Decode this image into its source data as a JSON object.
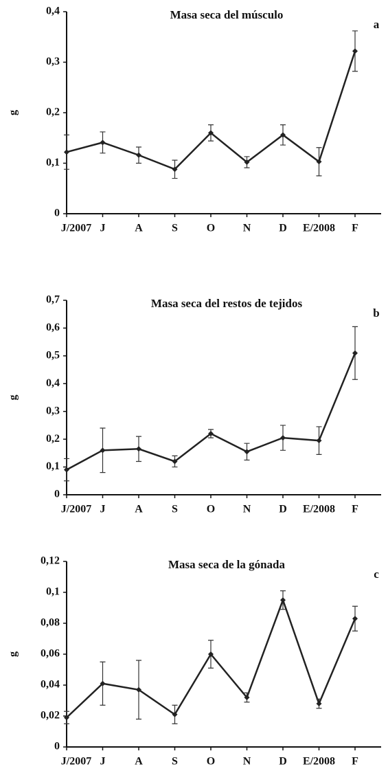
{
  "chart_data": [
    {
      "type": "line",
      "title": "Masa seca del músculo",
      "annotation": "a",
      "ylabel": "g",
      "color": "#222",
      "categories": [
        "J/2007",
        "J",
        "A",
        "S",
        "O",
        "N",
        "D",
        "E/2008",
        "F"
      ],
      "values": [
        0.122,
        0.141,
        0.116,
        0.088,
        0.16,
        0.102,
        0.156,
        0.103,
        0.322
      ],
      "errors": [
        0.034,
        0.021,
        0.016,
        0.018,
        0.016,
        0.011,
        0.02,
        0.028,
        0.04
      ],
      "ylim": [
        0,
        0.4
      ],
      "yticks": [
        0,
        {
          "value": 0.1,
          "label": "0,1"
        },
        {
          "value": 0.2,
          "label": "0,2"
        },
        {
          "value": 0.3,
          "label": "0,3"
        },
        {
          "value": 0.4,
          "label": "0,4"
        }
      ]
    },
    {
      "type": "line",
      "title": "Masa seca del restos de tejidos",
      "annotation": "b",
      "ylabel": "g",
      "color": "#222",
      "categories": [
        "J/2007",
        "J",
        "A",
        "S",
        "O",
        "N",
        "D",
        "E/2008",
        "F"
      ],
      "values": [
        0.09,
        0.16,
        0.165,
        0.12,
        0.22,
        0.155,
        0.205,
        0.195,
        0.51
      ],
      "errors": [
        0.04,
        0.08,
        0.045,
        0.02,
        0.015,
        0.03,
        0.045,
        0.05,
        0.095
      ],
      "ylim": [
        0,
        0.7
      ],
      "yticks": [
        0,
        {
          "value": 0.1,
          "label": "0,1"
        },
        {
          "value": 0.2,
          "label": "0,2"
        },
        {
          "value": 0.3,
          "label": "0,3"
        },
        {
          "value": 0.4,
          "label": "0,4"
        },
        {
          "value": 0.5,
          "label": "0,5"
        },
        {
          "value": 0.6,
          "label": "0,6"
        },
        {
          "value": 0.7,
          "label": "0,7"
        }
      ]
    },
    {
      "type": "line",
      "title": "Masa seca de la gónada",
      "annotation": "c",
      "ylabel": "g",
      "color": "#222",
      "categories": [
        "J/2007",
        "J",
        "A",
        "S",
        "O",
        "N",
        "D",
        "E/2008",
        "F"
      ],
      "values": [
        0.019,
        0.041,
        0.037,
        0.021,
        0.06,
        0.032,
        0.095,
        0.028,
        0.083
      ],
      "errors": [
        0.004,
        0.014,
        0.019,
        0.006,
        0.009,
        0.003,
        0.006,
        0.003,
        0.008
      ],
      "ylim": [
        0,
        0.12
      ],
      "yticks": [
        0,
        {
          "value": 0.02,
          "label": "0,02"
        },
        {
          "value": 0.04,
          "label": "0,04"
        },
        {
          "value": 0.06,
          "label": "0,06"
        },
        {
          "value": 0.08,
          "label": "0,08"
        },
        {
          "value": 0.1,
          "label": "0,1"
        },
        {
          "value": 0.12,
          "label": "0,12"
        }
      ]
    }
  ]
}
